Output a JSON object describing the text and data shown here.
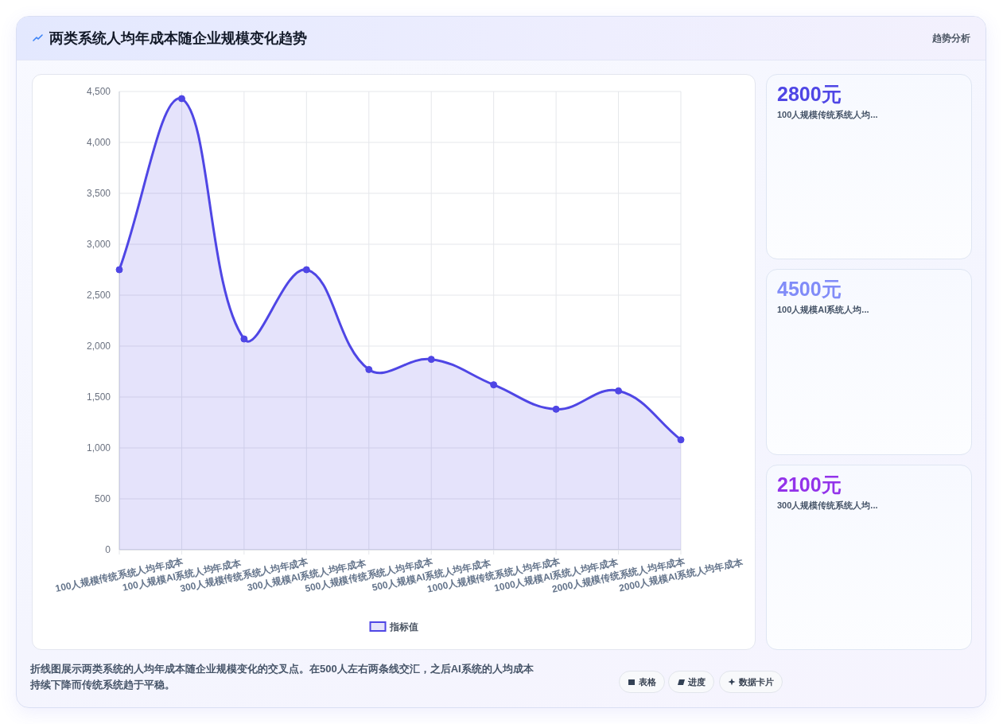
{
  "chart_data": [
    {
      "type": "area",
      "title": "两类系统人均年成本随企业规模变化趋势",
      "categories": [
        "100人规模传统系统人均年成本",
        "100人规模AI系统人均年成本",
        "300人规模传统系统人均年成本",
        "300人规模AI系统人均年成本",
        "500人规模传统系统人均年成本",
        "500人规模AI系统人均年成本",
        "1000人规模传统系统人均年成本",
        "1000人规模AI系统人均年成本",
        "2000人规模传统系统人均年成本",
        "2000人规模AI系统人均年成本"
      ],
      "series": [
        {
          "name": "指标值",
          "color": "#4f46e5",
          "values": [
            2750,
            4430,
            2070,
            2750,
            1770,
            1870,
            1620,
            1380,
            1560,
            1080
          ]
        }
      ],
      "ylim": [
        0,
        4500
      ],
      "yticks": [
        0,
        500,
        {
          "value": 1000,
          "label": "1,000"
        },
        {
          "value": 1500,
          "label": "1,500"
        },
        {
          "value": 2000,
          "label": "2,000"
        },
        {
          "value": 2500,
          "label": "2,500"
        },
        {
          "value": 3000,
          "label": "3,000"
        },
        {
          "value": 3500,
          "label": "3,500"
        },
        {
          "value": 4000,
          "label": "4,000"
        },
        {
          "value": 4500,
          "label": "4,500"
        }
      ],
      "grid": true,
      "legend": "bottom",
      "marker": "circle",
      "line_style": "solid",
      "annotations": [
        "趋势分析",
        "折线图展示两类系统的人均年成本随企业规模变化的交叉点。在500人左右两条线交汇，之后AI系统的人均成本持续下降而传统系统趋于平稳。",
        "表格",
        "进度",
        "数据卡片"
      ]
    },
    {
      "type": "other",
      "annotations": [
        "2800元",
        "100人规模传统系统人均...",
        "4500元",
        "100人规模AI系统人均...",
        "2100元",
        "300人规模传统系统人均..."
      ]
    }
  ]
}
